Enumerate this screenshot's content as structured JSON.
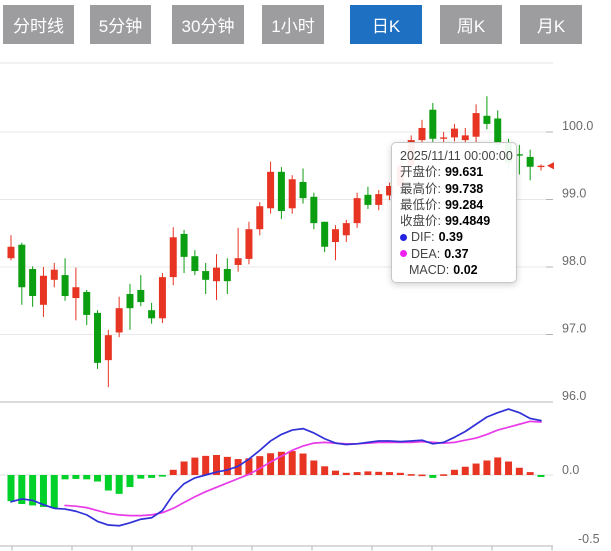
{
  "tabs": [
    {
      "name": "minute-line",
      "label": "分时线",
      "active": false
    },
    {
      "name": "5min",
      "label": "5分钟",
      "active": false
    },
    {
      "name": "30min",
      "label": "30分钟",
      "active": false
    },
    {
      "name": "1hour",
      "label": "1小时",
      "active": false
    },
    {
      "name": "daily-k",
      "label": "日K",
      "active": true
    },
    {
      "name": "weekly-k",
      "label": "周K",
      "active": false
    },
    {
      "name": "monthly-k",
      "label": "月K",
      "active": false
    }
  ],
  "tooltip": {
    "date": "2025/11/11 00:00:00",
    "rows": [
      {
        "label": "开盘价",
        "value": "99.631"
      },
      {
        "label": "最高价",
        "value": "99.738"
      },
      {
        "label": "最低价",
        "value": "99.284"
      },
      {
        "label": "收盘价",
        "value": "99.4849"
      },
      {
        "label": "DIF",
        "value": "0.39",
        "dot": "#2222e0"
      },
      {
        "label": "DEA",
        "value": "0.37",
        "dot": "#ee22ee"
      },
      {
        "label": "MACD",
        "value": "0.02",
        "indent": true
      }
    ]
  },
  "chart_data": {
    "type": "candlestick",
    "timeframe": "日K",
    "panes": [
      "price",
      "macd"
    ],
    "grid": true,
    "legend_position": "none",
    "price_ticks": [
      "100.0",
      "99.0",
      "98.0",
      "97.0",
      "96.0"
    ],
    "price_tick_values": [
      100.0,
      99.0,
      98.0,
      97.0,
      96.0
    ],
    "price_ylim": [
      95.9,
      101.1
    ],
    "macd_ticks": [
      "0.0",
      "-0.5"
    ],
    "macd_tick_values": [
      0.0,
      -0.5
    ],
    "macd_ylim": [
      -0.55,
      0.5
    ],
    "hover_index": 48,
    "hovered_candle": {
      "date": "2025/11/11 00:00:00",
      "open": 99.631,
      "high": 99.738,
      "low": 99.284,
      "close": 99.4849,
      "dif": 0.39,
      "dea": 0.37,
      "macd": 0.02
    },
    "last_price_marker": 99.5,
    "colors": {
      "up": "#e73423",
      "down": "#0b9e10",
      "hist_up": "#e73423",
      "hist_down": "#00d02a",
      "dif": "#3030d8",
      "dea": "#e93ce9",
      "grid": "#e8e8e8",
      "axis": "#b5b5b5",
      "label": "#6a6a6a"
    },
    "candles": [
      [
        98.13,
        98.47,
        98.1,
        98.3
      ],
      [
        98.33,
        98.36,
        97.44,
        97.7
      ],
      [
        97.97,
        98.01,
        97.41,
        97.57
      ],
      [
        97.44,
        98.0,
        97.26,
        97.87
      ],
      [
        97.81,
        98.06,
        97.7,
        97.96
      ],
      [
        97.88,
        98.13,
        97.5,
        97.57
      ],
      [
        97.54,
        97.99,
        97.21,
        97.7
      ],
      [
        97.63,
        97.66,
        97.14,
        97.29
      ],
      [
        97.32,
        97.36,
        96.49,
        96.58
      ],
      [
        96.62,
        97.07,
        96.22,
        96.99
      ],
      [
        97.03,
        97.56,
        96.96,
        97.39
      ],
      [
        97.6,
        97.75,
        97.07,
        97.39
      ],
      [
        97.66,
        97.88,
        97.42,
        97.48
      ],
      [
        97.36,
        97.47,
        97.16,
        97.24
      ],
      [
        97.24,
        97.91,
        97.17,
        97.85
      ],
      [
        97.85,
        98.59,
        97.73,
        98.44
      ],
      [
        98.49,
        98.55,
        97.91,
        98.15
      ],
      [
        98.16,
        98.25,
        97.88,
        97.94
      ],
      [
        97.94,
        98.06,
        97.6,
        97.81
      ],
      [
        97.79,
        98.19,
        97.51,
        97.99
      ],
      [
        97.97,
        98.13,
        97.6,
        97.79
      ],
      [
        98.03,
        98.58,
        97.93,
        98.13
      ],
      [
        98.12,
        98.67,
        98.04,
        98.56
      ],
      [
        98.56,
        98.96,
        98.47,
        98.9
      ],
      [
        98.87,
        99.56,
        98.79,
        99.41
      ],
      [
        99.41,
        99.48,
        98.71,
        98.83
      ],
      [
        98.87,
        99.36,
        98.79,
        99.3
      ],
      [
        99.26,
        99.46,
        98.94,
        99.02
      ],
      [
        99.04,
        99.1,
        98.56,
        98.65
      ],
      [
        98.67,
        98.67,
        98.22,
        98.3
      ],
      [
        98.37,
        98.62,
        98.1,
        98.56
      ],
      [
        98.47,
        98.7,
        98.37,
        98.65
      ],
      [
        98.65,
        99.1,
        98.58,
        99.02
      ],
      [
        99.07,
        99.19,
        98.86,
        98.92
      ],
      [
        98.92,
        99.14,
        98.84,
        99.08
      ],
      [
        99.06,
        99.25,
        98.99,
        99.2
      ],
      [
        99.2,
        99.55,
        99.15,
        99.5
      ],
      [
        99.5,
        99.95,
        99.45,
        99.88
      ],
      [
        99.88,
        100.18,
        99.8,
        100.06
      ],
      [
        100.33,
        100.43,
        99.85,
        99.9
      ],
      [
        99.9,
        100.0,
        99.8,
        99.92
      ],
      [
        99.92,
        100.12,
        99.86,
        100.05
      ],
      [
        99.88,
        100.06,
        99.82,
        99.95
      ],
      [
        99.93,
        100.41,
        99.84,
        100.28
      ],
      [
        100.24,
        100.53,
        100.04,
        100.12
      ],
      [
        100.2,
        100.32,
        99.73,
        99.81
      ],
      [
        99.84,
        99.9,
        99.45,
        99.55
      ],
      [
        99.67,
        99.81,
        99.37,
        99.65
      ],
      [
        99.631,
        99.738,
        99.284,
        99.4849
      ],
      [
        99.48,
        99.52,
        99.43,
        99.5
      ]
    ],
    "macd_hist": [
      -0.18,
      -0.2,
      -0.21,
      -0.22,
      -0.23,
      -0.03,
      -0.027,
      -0.03,
      -0.045,
      -0.107,
      -0.13,
      -0.083,
      -0.025,
      -0.02,
      -0.008,
      0.036,
      0.093,
      0.12,
      0.132,
      0.138,
      0.125,
      0.11,
      0.115,
      0.13,
      0.15,
      0.16,
      0.165,
      0.148,
      0.1,
      0.06,
      0.03,
      0.015,
      0.02,
      0.025,
      0.022,
      0.02,
      0.015,
      0.006,
      0.003,
      -0.02,
      0.005,
      0.036,
      0.057,
      0.079,
      0.1,
      0.121,
      0.093,
      0.05,
      0.02,
      -0.014
    ],
    "dif": [
      -0.185,
      -0.165,
      -0.175,
      -0.205,
      -0.23,
      -0.235,
      -0.25,
      -0.275,
      -0.32,
      -0.345,
      -0.35,
      -0.33,
      -0.305,
      -0.295,
      -0.245,
      -0.135,
      -0.06,
      -0.02,
      0.0,
      0.02,
      0.035,
      0.06,
      0.11,
      0.17,
      0.235,
      0.28,
      0.31,
      0.32,
      0.29,
      0.25,
      0.22,
      0.21,
      0.215,
      0.225,
      0.235,
      0.235,
      0.23,
      0.235,
      0.24,
      0.215,
      0.225,
      0.26,
      0.3,
      0.35,
      0.4,
      0.43,
      0.455,
      0.43,
      0.39,
      0.375
    ],
    "dea": [
      null,
      null,
      null,
      null,
      null,
      -0.21,
      -0.215,
      -0.225,
      -0.245,
      -0.265,
      -0.275,
      -0.28,
      -0.28,
      -0.275,
      -0.26,
      -0.23,
      -0.19,
      -0.15,
      -0.115,
      -0.085,
      -0.055,
      -0.025,
      0.005,
      0.045,
      0.09,
      0.13,
      0.17,
      0.2,
      0.22,
      0.225,
      0.22,
      0.215,
      0.215,
      0.22,
      0.225,
      0.225,
      0.225,
      0.225,
      0.23,
      0.225,
      0.22,
      0.225,
      0.24,
      0.255,
      0.28,
      0.31,
      0.33,
      0.35,
      0.37,
      0.365
    ]
  }
}
